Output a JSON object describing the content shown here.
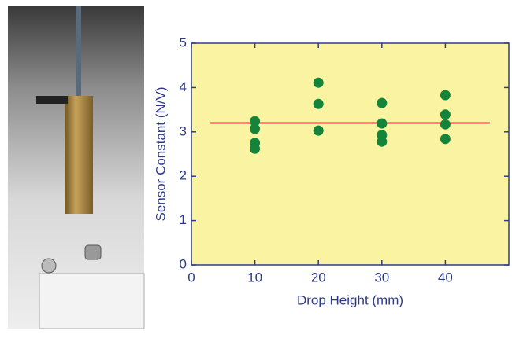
{
  "chart_data": {
    "type": "scatter",
    "xlabel": "Drop Height (mm)",
    "ylabel": "Sensor Constant (N/V)",
    "xlim": [
      0,
      50
    ],
    "ylim": [
      0,
      5
    ],
    "xticks": [
      0,
      10,
      20,
      30,
      40
    ],
    "yticks": [
      0,
      1,
      2,
      3,
      4,
      5
    ],
    "background": "#faf4a2",
    "series": [
      {
        "color": "#14843a",
        "x": [
          10,
          10,
          10,
          10,
          20,
          20,
          20,
          30,
          30,
          30,
          30,
          40,
          40,
          40,
          40
        ],
        "values": [
          3.24,
          3.07,
          2.75,
          2.62,
          4.11,
          3.63,
          3.03,
          3.65,
          3.19,
          2.93,
          2.78,
          3.83,
          3.39,
          3.17,
          2.84
        ]
      }
    ],
    "fit_line": {
      "color": "#e0303a",
      "x": [
        3,
        47
      ],
      "values": [
        3.2,
        3.2
      ]
    }
  }
}
